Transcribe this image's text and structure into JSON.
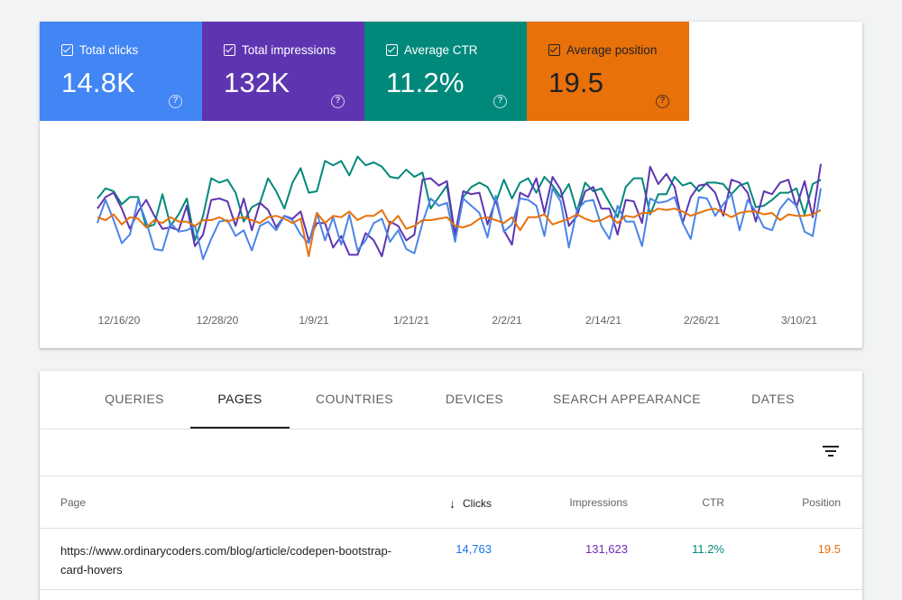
{
  "metrics": [
    {
      "label": "Total clicks",
      "value": "14.8K",
      "color": "#4285f4",
      "text_color": "#ffffff",
      "checked": true
    },
    {
      "label": "Total impressions",
      "value": "132K",
      "color": "#5e35b1",
      "text_color": "#ffffff",
      "checked": true
    },
    {
      "label": "Average CTR",
      "value": "11.2%",
      "color": "#00897b",
      "text_color": "#ffffff",
      "checked": true
    },
    {
      "label": "Average position",
      "value": "19.5",
      "color": "#e8710a",
      "text_color": "#202124",
      "checked": true
    }
  ],
  "help_glyph": "?",
  "chart_data": {
    "type": "line",
    "x_tick_labels": [
      "12/16/20",
      "12/28/20",
      "1/9/21",
      "1/21/21",
      "2/2/21",
      "2/14/21",
      "2/26/21",
      "3/10/21"
    ],
    "x_range": [
      "12/15/20",
      "3/16/21"
    ],
    "grid": false,
    "legend": "none",
    "series": [
      {
        "color": "#00897b",
        "values": [
          65,
          72,
          70,
          61,
          66,
          66,
          45,
          47,
          68,
          46,
          54,
          65,
          36,
          53,
          79,
          76,
          78,
          69,
          49,
          59,
          62,
          79,
          70,
          58,
          76,
          86,
          69,
          70,
          91,
          88,
          91,
          81,
          94,
          88,
          90,
          87,
          80,
          79,
          85,
          80,
          83,
          58,
          66,
          74,
          38,
          66,
          73,
          76,
          73,
          62,
          78,
          65,
          76,
          79,
          69,
          80,
          74,
          66,
          75,
          56,
          76,
          70,
          72,
          62,
          52,
          73,
          79,
          79,
          54,
          68,
          68,
          80,
          74,
          76,
          70,
          76,
          76,
          75,
          68,
          74,
          76,
          59,
          60,
          64,
          69,
          69,
          72,
          54,
          75,
          78
        ]
      },
      {
        "color": "#5e35b1",
        "values": [
          58,
          66,
          69,
          58,
          44,
          56,
          64,
          53,
          44,
          45,
          43,
          60,
          32,
          40,
          64,
          65,
          63,
          46,
          65,
          43,
          62,
          57,
          45,
          53,
          51,
          56,
          36,
          48,
          48,
          31,
          39,
          26,
          26,
          41,
          36,
          25,
          49,
          46,
          36,
          40,
          78,
          79,
          74,
          77,
          40,
          70,
          68,
          69,
          47,
          64,
          43,
          33,
          69,
          66,
          79,
          55,
          80,
          71,
          46,
          53,
          70,
          73,
          58,
          58,
          40,
          64,
          63,
          48,
          87,
          75,
          82,
          73,
          48,
          66,
          74,
          75,
          69,
          53,
          78,
          76,
          69,
          49,
          70,
          68,
          76,
          78,
          59,
          77,
          52,
          89
        ]
      },
      {
        "color": "#4a85e8",
        "values": [
          48,
          64,
          50,
          34,
          40,
          64,
          49,
          30,
          29,
          48,
          42,
          43,
          46,
          23,
          37,
          49,
          50,
          39,
          43,
          29,
          46,
          49,
          43,
          53,
          50,
          40,
          34,
          55,
          36,
          52,
          33,
          54,
          29,
          36,
          48,
          51,
          35,
          43,
          30,
          27,
          48,
          65,
          60,
          62,
          35,
          65,
          60,
          55,
          38,
          67,
          42,
          47,
          65,
          64,
          60,
          39,
          72,
          63,
          31,
          57,
          63,
          64,
          46,
          37,
          60,
          49,
          49,
          32,
          65,
          62,
          63,
          66,
          48,
          37,
          66,
          65,
          53,
          61,
          68,
          43,
          64,
          56,
          45,
          43,
          58,
          65,
          60,
          42,
          39,
          72
        ]
      },
      {
        "color": "#e8710a",
        "values": [
          52,
          50,
          54,
          47,
          52,
          51,
          45,
          50,
          48,
          52,
          49,
          49,
          46,
          50,
          50,
          52,
          49,
          51,
          52,
          50,
          48,
          52,
          53,
          51,
          48,
          51,
          25,
          55,
          48,
          53,
          52,
          56,
          50,
          53,
          53,
          57,
          47,
          53,
          44,
          46,
          50,
          50,
          51,
          52,
          46,
          45,
          47,
          51,
          52,
          50,
          48,
          52,
          43,
          52,
          52,
          54,
          47,
          49,
          51,
          54,
          51,
          49,
          50,
          53,
          48,
          53,
          52,
          55,
          55,
          58,
          57,
          58,
          56,
          53,
          55,
          57,
          58,
          55,
          52,
          55,
          56,
          56,
          54,
          55,
          50,
          54,
          53,
          53,
          54,
          57
        ]
      }
    ]
  },
  "tabs": [
    {
      "label": "QUERIES",
      "active": false
    },
    {
      "label": "PAGES",
      "active": true
    },
    {
      "label": "COUNTRIES",
      "active": false
    },
    {
      "label": "DEVICES",
      "active": false
    },
    {
      "label": "SEARCH APPEARANCE",
      "active": false
    },
    {
      "label": "DATES",
      "active": false
    }
  ],
  "table": {
    "headers": {
      "page": "Page",
      "clicks": "Clicks",
      "impressions": "Impressions",
      "ctr": "CTR",
      "position": "Position",
      "sort_arrow": "↓"
    },
    "rows": [
      {
        "page": "https://www.ordinarycoders.com/blog/article/codepen-bootstrap-card-hovers",
        "clicks": "14,763",
        "impressions": "131,623",
        "ctr": "11.2%",
        "position": "19.5"
      }
    ]
  }
}
